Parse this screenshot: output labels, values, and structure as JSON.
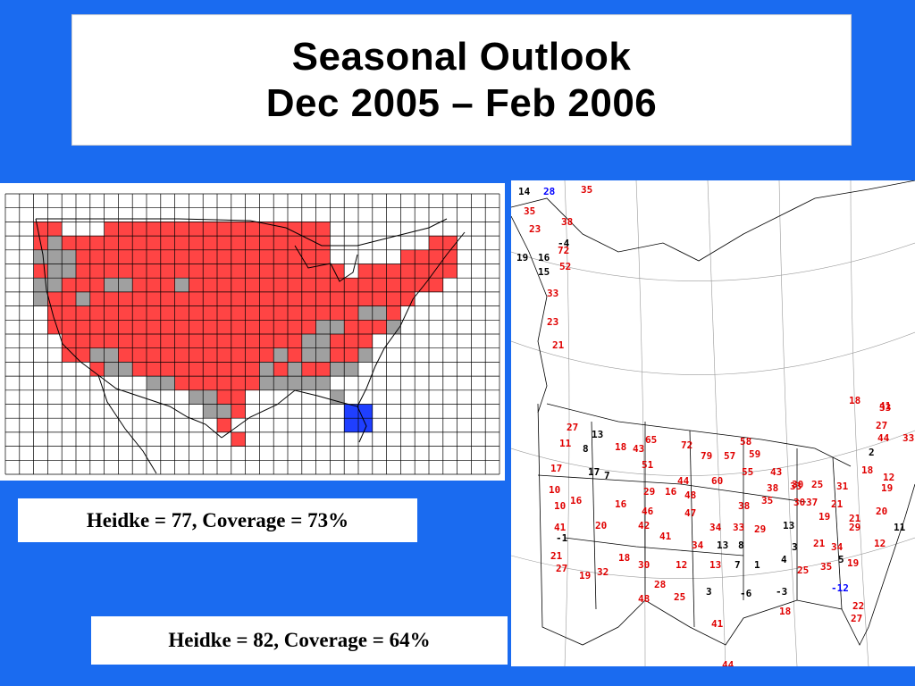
{
  "title": {
    "line1": "Seasonal Outlook",
    "line2": "Dec 2005 – Feb 2006"
  },
  "scores": {
    "gridded": "Heidke = 77, Coverage = 73%",
    "station": "Heidke = 82, Coverage = 64%"
  },
  "colors": {
    "background": "#1a6bf0",
    "above_normal": "#ff4444",
    "equal_chances": "#a0a0a0",
    "below_normal": "#1f3fff",
    "station_positive": "#e00000",
    "station_neutral": "#000000",
    "station_negative": "#0000ff"
  },
  "grid_categories": [
    "above_normal",
    "equal_chances",
    "below_normal"
  ],
  "station_values": [
    {
      "v": "14",
      "c": "neutral"
    },
    {
      "v": "28",
      "c": "negative"
    },
    {
      "v": "35",
      "c": "positive"
    },
    {
      "v": "35",
      "c": "positive"
    },
    {
      "v": "38",
      "c": "positive"
    },
    {
      "v": "23",
      "c": "positive"
    },
    {
      "v": "-4",
      "c": "neutral"
    },
    {
      "v": "72",
      "c": "positive"
    },
    {
      "v": "19",
      "c": "neutral"
    },
    {
      "v": "16",
      "c": "neutral"
    },
    {
      "v": "52",
      "c": "positive"
    },
    {
      "v": "15",
      "c": "neutral"
    },
    {
      "v": "33",
      "c": "positive"
    },
    {
      "v": "23",
      "c": "positive"
    },
    {
      "v": "21",
      "c": "positive"
    },
    {
      "v": "27",
      "c": "positive"
    },
    {
      "v": "13",
      "c": "neutral"
    },
    {
      "v": "65",
      "c": "positive"
    },
    {
      "v": "58",
      "c": "positive"
    },
    {
      "v": "11",
      "c": "positive"
    },
    {
      "v": "8",
      "c": "neutral"
    },
    {
      "v": "18",
      "c": "positive"
    },
    {
      "v": "43",
      "c": "positive"
    },
    {
      "v": "72",
      "c": "positive"
    },
    {
      "v": "79",
      "c": "positive"
    },
    {
      "v": "57",
      "c": "positive"
    },
    {
      "v": "59",
      "c": "positive"
    },
    {
      "v": "41",
      "c": "positive"
    },
    {
      "v": "44",
      "c": "positive"
    },
    {
      "v": "33",
      "c": "positive"
    },
    {
      "v": "51",
      "c": "positive"
    },
    {
      "v": "17",
      "c": "positive"
    },
    {
      "v": "17",
      "c": "neutral"
    },
    {
      "v": "7",
      "c": "neutral"
    },
    {
      "v": "44",
      "c": "positive"
    },
    {
      "v": "60",
      "c": "positive"
    },
    {
      "v": "55",
      "c": "positive"
    },
    {
      "v": "43",
      "c": "positive"
    },
    {
      "v": "30",
      "c": "positive"
    },
    {
      "v": "10",
      "c": "positive"
    },
    {
      "v": "29",
      "c": "positive"
    },
    {
      "v": "16",
      "c": "positive"
    },
    {
      "v": "48",
      "c": "positive"
    },
    {
      "v": "38",
      "c": "positive"
    },
    {
      "v": "33",
      "c": "positive"
    },
    {
      "v": "25",
      "c": "positive"
    },
    {
      "v": "31",
      "c": "positive"
    },
    {
      "v": "18",
      "c": "positive"
    },
    {
      "v": "12",
      "c": "positive"
    },
    {
      "v": "19",
      "c": "positive"
    },
    {
      "v": "10",
      "c": "positive"
    },
    {
      "v": "16",
      "c": "positive"
    },
    {
      "v": "16",
      "c": "positive"
    },
    {
      "v": "46",
      "c": "positive"
    },
    {
      "v": "47",
      "c": "positive"
    },
    {
      "v": "38",
      "c": "positive"
    },
    {
      "v": "35",
      "c": "positive"
    },
    {
      "v": "30",
      "c": "positive"
    },
    {
      "v": "37",
      "c": "positive"
    },
    {
      "v": "21",
      "c": "positive"
    },
    {
      "v": "21",
      "c": "positive"
    },
    {
      "v": "20",
      "c": "positive"
    },
    {
      "v": "20",
      "c": "positive"
    },
    {
      "v": "42",
      "c": "positive"
    },
    {
      "v": "34",
      "c": "positive"
    },
    {
      "v": "33",
      "c": "positive"
    },
    {
      "v": "29",
      "c": "positive"
    },
    {
      "v": "13",
      "c": "neutral"
    },
    {
      "v": "19",
      "c": "positive"
    },
    {
      "v": "29",
      "c": "positive"
    },
    {
      "v": "11",
      "c": "neutral"
    },
    {
      "v": "41",
      "c": "positive"
    },
    {
      "v": "41",
      "c": "positive"
    },
    {
      "v": "34",
      "c": "positive"
    },
    {
      "v": "13",
      "c": "neutral"
    },
    {
      "v": "8",
      "c": "neutral"
    },
    {
      "v": "3",
      "c": "neutral"
    },
    {
      "v": "21",
      "c": "positive"
    },
    {
      "v": "34",
      "c": "positive"
    },
    {
      "v": "5",
      "c": "neutral"
    },
    {
      "v": "12",
      "c": "positive"
    },
    {
      "v": "-1",
      "c": "neutral"
    },
    {
      "v": "18",
      "c": "positive"
    },
    {
      "v": "21",
      "c": "positive"
    },
    {
      "v": "27",
      "c": "positive"
    },
    {
      "v": "19",
      "c": "positive"
    },
    {
      "v": "32",
      "c": "positive"
    },
    {
      "v": "30",
      "c": "positive"
    },
    {
      "v": "12",
      "c": "positive"
    },
    {
      "v": "13",
      "c": "positive"
    },
    {
      "v": "7",
      "c": "neutral"
    },
    {
      "v": "1",
      "c": "neutral"
    },
    {
      "v": "4",
      "c": "neutral"
    },
    {
      "v": "25",
      "c": "positive"
    },
    {
      "v": "35",
      "c": "positive"
    },
    {
      "v": "19",
      "c": "positive"
    },
    {
      "v": "28",
      "c": "positive"
    },
    {
      "v": "48",
      "c": "positive"
    },
    {
      "v": "25",
      "c": "positive"
    },
    {
      "v": "3",
      "c": "neutral"
    },
    {
      "v": "-6",
      "c": "neutral"
    },
    {
      "v": "-3",
      "c": "neutral"
    },
    {
      "v": "-12",
      "c": "negative"
    },
    {
      "v": "22",
      "c": "positive"
    },
    {
      "v": "27",
      "c": "positive"
    },
    {
      "v": "18",
      "c": "positive"
    },
    {
      "v": "41",
      "c": "positive"
    },
    {
      "v": "44",
      "c": "positive"
    },
    {
      "v": "33",
      "c": "positive"
    },
    {
      "v": "18",
      "c": "positive"
    },
    {
      "v": "27",
      "c": "positive"
    },
    {
      "v": "2",
      "c": "neutral"
    }
  ]
}
